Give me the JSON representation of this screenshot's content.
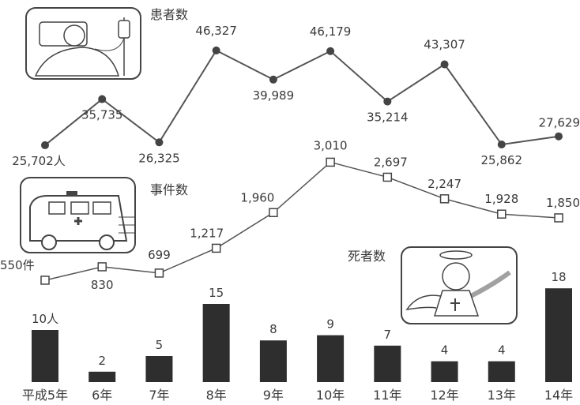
{
  "chart_data": {
    "type": "line",
    "categories": [
      "平成5年",
      "6年",
      "7年",
      "8年",
      "9年",
      "10年",
      "11年",
      "12年",
      "13年",
      "14年"
    ],
    "series": [
      {
        "name": "患者数",
        "values": [
          25702,
          35735,
          26325,
          46327,
          39989,
          46179,
          35214,
          43307,
          25862,
          27629
        ],
        "labels": [
          "25,702人",
          "35,735",
          "26,325",
          "46,327",
          "39,989",
          "46,179",
          "35,214",
          "43,307",
          "25,862",
          "27,629"
        ]
      },
      {
        "name": "事件数",
        "values": [
          550,
          830,
          699,
          1217,
          1960,
          3010,
          2697,
          2247,
          1928,
          1850
        ],
        "labels": [
          "550件",
          "830",
          "699",
          "1,217",
          "1,960",
          "3,010",
          "2,697",
          "2,247",
          "1,928",
          "1,850"
        ]
      },
      {
        "name": "死者数",
        "type": "bar",
        "values": [
          10,
          2,
          5,
          15,
          8,
          9,
          7,
          4,
          4,
          18
        ],
        "labels": [
          "10人",
          "2",
          "5",
          "15",
          "8",
          "9",
          "7",
          "4",
          "4",
          "18"
        ]
      }
    ],
    "grid": false,
    "legend": "inline labels beside icons"
  },
  "icons": {
    "patients": "sick-patient-in-bed-icon",
    "incidents": "ambulance-icon",
    "deaths": "angel-icon"
  },
  "colors": {
    "ink": "#3a3a3a",
    "bar": "#2e2e2e",
    "line": "#555555"
  }
}
